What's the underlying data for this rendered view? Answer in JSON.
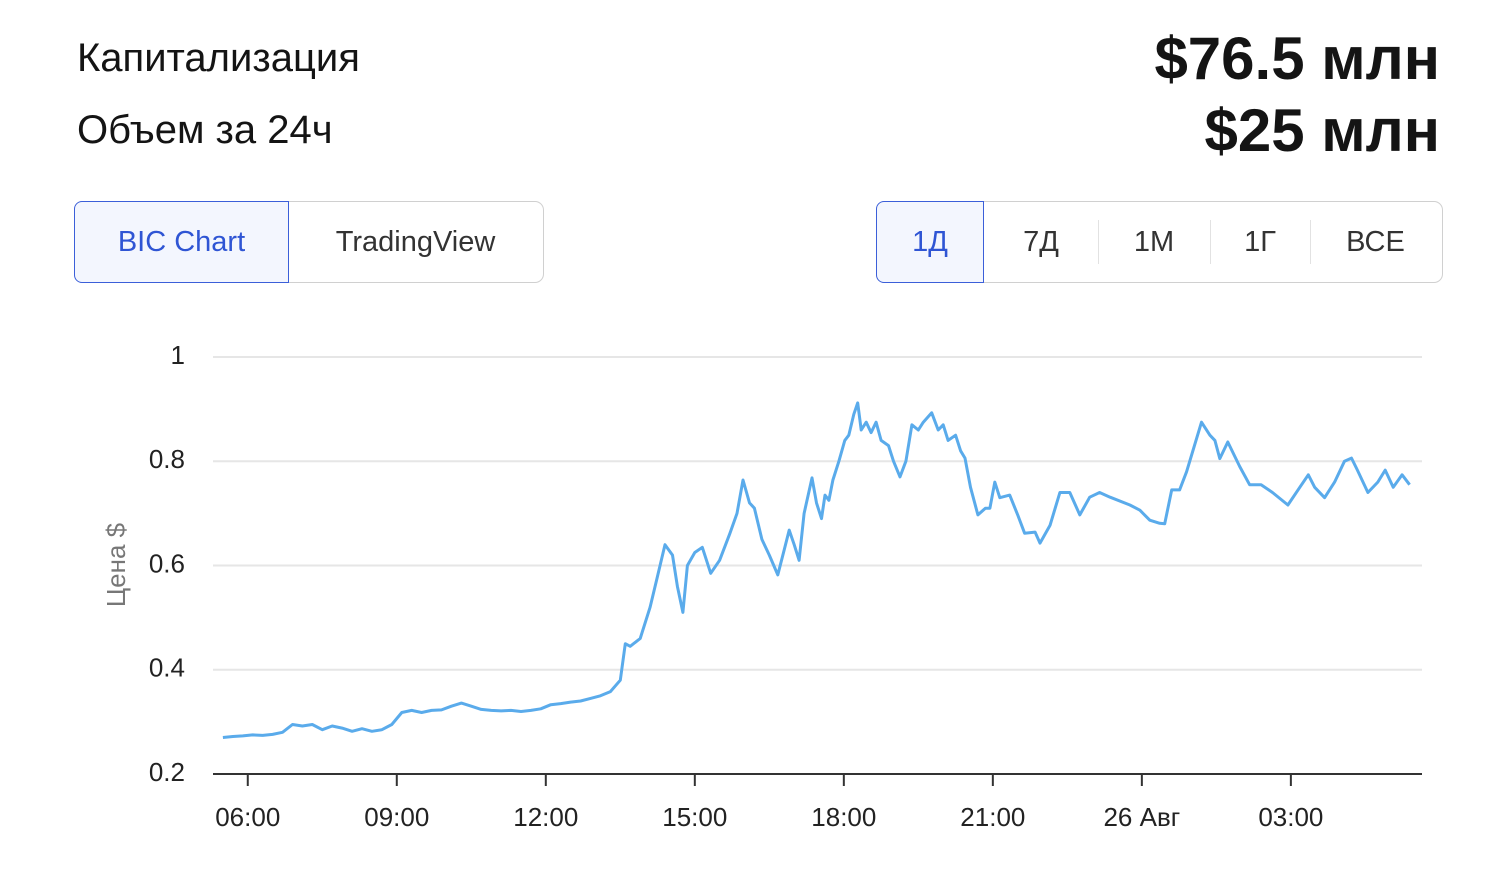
{
  "stats": [
    {
      "label": "Капитализация",
      "value": "$76.5 млн"
    },
    {
      "label": "Объем за 24ч",
      "value": "$25 млн"
    }
  ],
  "chart_tabs": {
    "items": [
      "BIC Chart",
      "TradingView"
    ],
    "active": 0
  },
  "periods": {
    "items": [
      "1Д",
      "7Д",
      "1М",
      "1Г",
      "ВСЕ"
    ],
    "active": 0
  },
  "chart_data": {
    "type": "line",
    "ylabel": "Цена $",
    "color": "#5aabeb",
    "grid": true,
    "x": [
      5.5,
      5.7,
      5.9,
      6.1,
      6.3,
      6.5,
      6.7,
      6.9,
      7.1,
      7.3,
      7.5,
      7.7,
      7.9,
      8.1,
      8.3,
      8.5,
      8.7,
      8.9,
      9.1,
      9.3,
      9.5,
      9.7,
      9.9,
      10.1,
      10.3,
      10.5,
      10.7,
      10.9,
      11.1,
      11.3,
      11.5,
      11.7,
      11.9,
      12.1,
      12.3,
      12.5,
      12.7,
      12.9,
      13.1,
      13.3,
      13.5,
      13.6,
      13.7,
      13.9,
      14.1,
      14.25,
      14.4,
      14.55,
      14.65,
      14.76,
      14.85,
      15.0,
      15.15,
      15.32,
      15.5,
      15.7,
      15.85,
      15.97,
      16.1,
      16.2,
      16.35,
      16.5,
      16.67,
      16.8,
      16.9,
      17.0,
      17.1,
      17.2,
      17.36,
      17.45,
      17.55,
      17.62,
      17.7,
      17.78,
      17.9,
      18.02,
      18.1,
      18.2,
      18.28,
      18.35,
      18.45,
      18.55,
      18.65,
      18.75,
      18.9,
      19.0,
      19.13,
      19.25,
      19.37,
      19.5,
      19.6,
      19.77,
      19.9,
      20.0,
      20.1,
      20.25,
      20.35,
      20.44,
      20.55,
      20.7,
      20.85,
      20.94,
      21.04,
      21.14,
      21.34,
      21.5,
      21.64,
      21.85,
      21.95,
      22.15,
      22.35,
      22.55,
      22.75,
      22.95,
      23.15,
      23.36,
      23.76,
      23.96,
      24.16,
      24.36,
      24.46,
      24.6,
      24.76,
      24.9,
      25.2,
      25.37,
      25.47,
      25.57,
      25.73,
      25.97,
      26.17,
      26.4,
      26.63,
      26.94,
      27.18,
      27.35,
      27.48,
      27.68,
      27.88,
      28.08,
      28.22,
      28.34,
      28.55,
      28.75,
      28.9,
      29.06,
      29.24,
      29.39
    ],
    "values": [
      0.27,
      0.272,
      0.273,
      0.275,
      0.274,
      0.276,
      0.28,
      0.295,
      0.292,
      0.295,
      0.285,
      0.292,
      0.288,
      0.282,
      0.287,
      0.282,
      0.285,
      0.295,
      0.318,
      0.322,
      0.318,
      0.322,
      0.323,
      0.33,
      0.336,
      0.33,
      0.324,
      0.322,
      0.321,
      0.322,
      0.32,
      0.322,
      0.325,
      0.333,
      0.335,
      0.338,
      0.34,
      0.345,
      0.35,
      0.358,
      0.38,
      0.45,
      0.445,
      0.46,
      0.52,
      0.58,
      0.64,
      0.62,
      0.56,
      0.51,
      0.6,
      0.625,
      0.635,
      0.585,
      0.61,
      0.66,
      0.7,
      0.764,
      0.72,
      0.71,
      0.65,
      0.62,
      0.582,
      0.63,
      0.668,
      0.64,
      0.61,
      0.7,
      0.768,
      0.72,
      0.69,
      0.735,
      0.725,
      0.764,
      0.8,
      0.84,
      0.85,
      0.89,
      0.912,
      0.86,
      0.875,
      0.855,
      0.875,
      0.84,
      0.83,
      0.8,
      0.77,
      0.8,
      0.87,
      0.86,
      0.875,
      0.893,
      0.86,
      0.87,
      0.84,
      0.85,
      0.82,
      0.806,
      0.75,
      0.697,
      0.71,
      0.71,
      0.76,
      0.73,
      0.735,
      0.697,
      0.662,
      0.664,
      0.643,
      0.677,
      0.74,
      0.74,
      0.697,
      0.731,
      0.74,
      0.731,
      0.716,
      0.706,
      0.687,
      0.681,
      0.68,
      0.745,
      0.745,
      0.78,
      0.875,
      0.85,
      0.84,
      0.805,
      0.837,
      0.79,
      0.755,
      0.755,
      0.74,
      0.716,
      0.75,
      0.774,
      0.75,
      0.73,
      0.76,
      0.8,
      0.806,
      0.783,
      0.74,
      0.76,
      0.783,
      0.75,
      0.774,
      0.755
    ],
    "xlim": [
      5.3,
      29.64
    ],
    "xticks": [
      {
        "value": 6,
        "label": "06:00"
      },
      {
        "value": 9,
        "label": "09:00"
      },
      {
        "value": 12,
        "label": "12:00"
      },
      {
        "value": 15,
        "label": "15:00"
      },
      {
        "value": 18,
        "label": "18:00"
      },
      {
        "value": 21,
        "label": "21:00"
      },
      {
        "value": 24,
        "label": "26 Авг"
      },
      {
        "value": 27,
        "label": "03:00"
      }
    ],
    "ylim": [
      0.2,
      1
    ],
    "yticks": [
      0.2,
      0.4,
      0.6,
      0.8,
      1
    ]
  }
}
